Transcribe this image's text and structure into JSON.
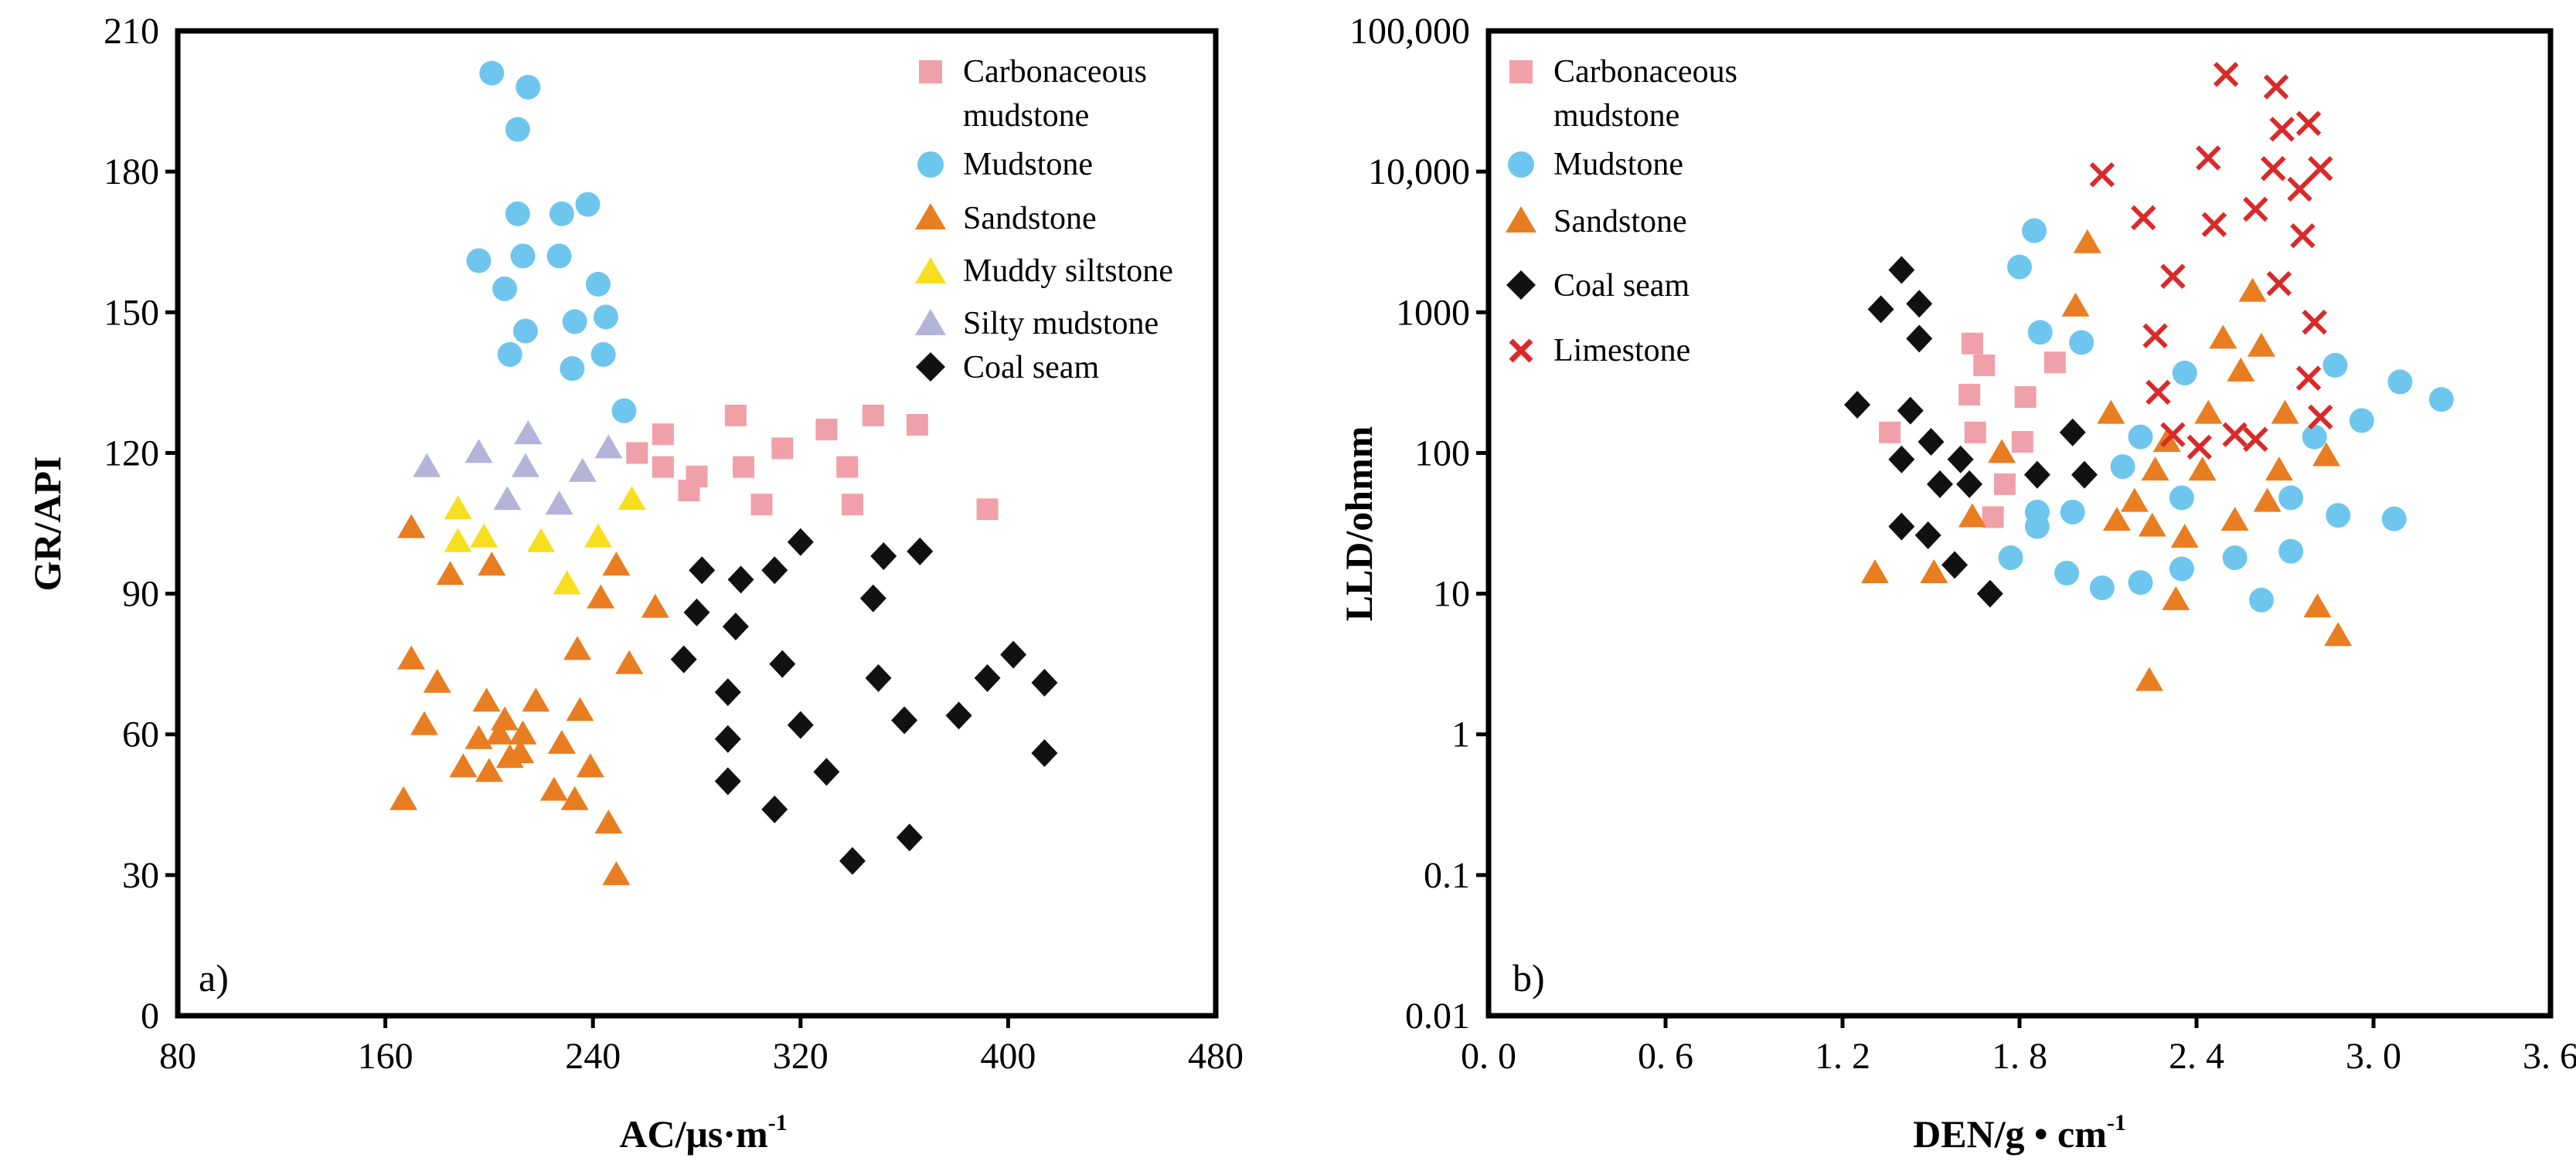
{
  "colors": {
    "carbonaceous_mudstone": "#f0a0a8",
    "mudstone": "#6ec6ee",
    "sandstone": "#e87d22",
    "muddy_siltstone": "#f7de1f",
    "silty_mudstone": "#b3b4d8",
    "coal_seam": "#111111",
    "limestone": "#d92a2a"
  },
  "chart_data": [
    {
      "type": "scatter",
      "panel_label": "a)",
      "xlabel": "AC/μs·m",
      "xlabel_sup": "-1",
      "ylabel": "GR/API",
      "xlim": [
        80,
        480
      ],
      "ylim": [
        0,
        210
      ],
      "x_ticks": [
        "80",
        "160",
        "240",
        "320",
        "400",
        "480"
      ],
      "y_ticks": [
        "0",
        "30",
        "60",
        "90",
        "120",
        "150",
        "180",
        "210"
      ],
      "legend_position": "top-right",
      "legend": [
        "Carbonaceous",
        "mudstone",
        "Mudstone",
        "Sandstone",
        "Muddy siltstone",
        "Silty mudstone",
        "Coal seam"
      ],
      "series": [
        {
          "name": "Carbonaceous mudstone",
          "color_key": "carbonaceous_mudstone",
          "marker": "square",
          "points": [
            [
              257,
              120
            ],
            [
              267,
              124
            ],
            [
              267,
              117
            ],
            [
              277,
              112
            ],
            [
              280,
              115
            ],
            [
              295,
              128
            ],
            [
              298,
              117
            ],
            [
              305,
              109
            ],
            [
              313,
              121
            ],
            [
              330,
              125
            ],
            [
              338,
              117
            ],
            [
              340,
              109
            ],
            [
              348,
              128
            ],
            [
              365,
              126
            ],
            [
              392,
              108
            ]
          ]
        },
        {
          "name": "Mudstone",
          "color_key": "mudstone",
          "marker": "circle",
          "points": [
            [
              201,
              201
            ],
            [
              215,
              198
            ],
            [
              211,
              189
            ],
            [
              211,
              171
            ],
            [
              228,
              171
            ],
            [
              238,
              173
            ],
            [
              196,
              161
            ],
            [
              213,
              162
            ],
            [
              227,
              162
            ],
            [
              206,
              155
            ],
            [
              242,
              156
            ],
            [
              233,
              148
            ],
            [
              245,
              149
            ],
            [
              214,
              146
            ],
            [
              208,
              141
            ],
            [
              244,
              141
            ],
            [
              232,
              138
            ],
            [
              252,
              129
            ]
          ]
        },
        {
          "name": "Sandstone",
          "color_key": "sandstone",
          "marker": "triangle",
          "points": [
            [
              170,
              104
            ],
            [
              185,
              94
            ],
            [
              201,
              96
            ],
            [
              243,
              89
            ],
            [
              249,
              96
            ],
            [
              264,
              87
            ],
            [
              254,
              75
            ],
            [
              170,
              76
            ],
            [
              175,
              62
            ],
            [
              180,
              71
            ],
            [
              234,
              78
            ],
            [
              167,
              46
            ],
            [
              190,
              53
            ],
            [
              196,
              59
            ],
            [
              199,
              67
            ],
            [
              200,
              52
            ],
            [
              204,
              60
            ],
            [
              206,
              63
            ],
            [
              208,
              55
            ],
            [
              212,
              56
            ],
            [
              213,
              60
            ],
            [
              218,
              67
            ],
            [
              225,
              48
            ],
            [
              228,
              58
            ],
            [
              233,
              46
            ],
            [
              235,
              65
            ],
            [
              239,
              53
            ],
            [
              246,
              41
            ],
            [
              249,
              30
            ]
          ]
        },
        {
          "name": "Muddy siltstone",
          "color_key": "muddy_siltstone",
          "marker": "triangle",
          "points": [
            [
              188,
              108
            ],
            [
              188,
              101
            ],
            [
              198,
              102
            ],
            [
              220,
              101
            ],
            [
              230,
              92
            ],
            [
              242,
              102
            ],
            [
              255,
              110
            ]
          ]
        },
        {
          "name": "Silty mudstone",
          "color_key": "silty_mudstone",
          "marker": "triangle",
          "points": [
            [
              176,
              117
            ],
            [
              196,
              120
            ],
            [
              207,
              110
            ],
            [
              214,
              117
            ],
            [
              215,
              124
            ],
            [
              227,
              109
            ],
            [
              236,
              116
            ],
            [
              246,
              121
            ]
          ]
        },
        {
          "name": "Coal seam",
          "color_key": "coal_seam",
          "marker": "diamond",
          "points": [
            [
              282,
              95
            ],
            [
              275,
              76
            ],
            [
              280,
              86
            ],
            [
              292,
              69
            ],
            [
              292,
              59
            ],
            [
              292,
              50
            ],
            [
              295,
              83
            ],
            [
              297,
              93
            ],
            [
              310,
              95
            ],
            [
              310,
              44
            ],
            [
              313,
              75
            ],
            [
              320,
              101
            ],
            [
              320,
              62
            ],
            [
              330,
              52
            ],
            [
              340,
              33
            ],
            [
              348,
              89
            ],
            [
              350,
              72
            ],
            [
              352,
              98
            ],
            [
              360,
              63
            ],
            [
              362,
              38
            ],
            [
              366,
              99
            ],
            [
              381,
              64
            ],
            [
              392,
              72
            ],
            [
              402,
              77
            ],
            [
              414,
              71
            ],
            [
              414,
              56
            ]
          ]
        }
      ]
    },
    {
      "type": "scatter",
      "panel_label": "b)",
      "xlabel": "DEN/g • cm",
      "xlabel_sup": "-1",
      "ylabel": "LLD/ohmm",
      "xlim": [
        0.0,
        3.6
      ],
      "ylim": [
        0.01,
        100000
      ],
      "y_scale": "log",
      "x_ticks": [
        "0. 0",
        "0. 6",
        "1. 2",
        "1. 8",
        "2. 4",
        "3. 0",
        "3. 6"
      ],
      "y_ticks": [
        "0.01",
        "0.1",
        "1",
        "10",
        "100",
        "1000",
        "10,000",
        "100,000"
      ],
      "legend_position": "top-left",
      "legend": [
        "Carbonaceous",
        "mudstone",
        "Mudstone",
        "Sandstone",
        "Coal seam",
        "Limestone"
      ],
      "series": [
        {
          "name": "Carbonaceous mudstone",
          "color_key": "carbonaceous_mudstone",
          "marker": "square",
          "points": [
            [
              1.36,
              140
            ],
            [
              1.64,
              600
            ],
            [
              1.68,
              420
            ],
            [
              1.63,
              260
            ],
            [
              1.65,
              140
            ],
            [
              1.82,
              250
            ],
            [
              1.81,
              120
            ],
            [
              1.92,
              440
            ],
            [
              1.75,
              60
            ],
            [
              1.71,
              35
            ]
          ]
        },
        {
          "name": "Mudstone",
          "color_key": "mudstone",
          "marker": "circle",
          "points": [
            [
              1.85,
              3800
            ],
            [
              1.8,
              2100
            ],
            [
              1.87,
              720
            ],
            [
              2.01,
              610
            ],
            [
              1.77,
              18
            ],
            [
              1.86,
              38
            ],
            [
              1.86,
              30
            ],
            [
              1.96,
              14
            ],
            [
              1.98,
              38
            ],
            [
              2.08,
              11
            ],
            [
              2.15,
              80
            ],
            [
              2.21,
              130
            ],
            [
              2.21,
              12
            ],
            [
              2.35,
              48
            ],
            [
              2.35,
              15
            ],
            [
              2.36,
              370
            ],
            [
              2.53,
              18
            ],
            [
              2.62,
              9
            ],
            [
              2.72,
              48
            ],
            [
              2.72,
              20
            ],
            [
              2.8,
              130
            ],
            [
              2.87,
              420
            ],
            [
              2.88,
              36
            ],
            [
              2.96,
              170
            ],
            [
              3.07,
              34
            ],
            [
              3.09,
              320
            ],
            [
              3.23,
              240
            ]
          ]
        },
        {
          "name": "Sandstone",
          "color_key": "sandstone",
          "marker": "triangle",
          "points": [
            [
              1.31,
              14
            ],
            [
              1.51,
              14
            ],
            [
              1.64,
              35
            ],
            [
              1.74,
              100
            ],
            [
              1.99,
              1100
            ],
            [
              2.03,
              3100
            ],
            [
              2.11,
              190
            ],
            [
              2.13,
              33
            ],
            [
              2.19,
              45
            ],
            [
              2.24,
              2.4
            ],
            [
              2.25,
              30
            ],
            [
              2.26,
              75
            ],
            [
              2.3,
              120
            ],
            [
              2.33,
              9
            ],
            [
              2.36,
              25
            ],
            [
              2.42,
              75
            ],
            [
              2.44,
              190
            ],
            [
              2.49,
              650
            ],
            [
              2.53,
              33
            ],
            [
              2.55,
              380
            ],
            [
              2.59,
              1400
            ],
            [
              2.62,
              570
            ],
            [
              2.64,
              45
            ],
            [
              2.68,
              75
            ],
            [
              2.7,
              190
            ],
            [
              2.81,
              8
            ],
            [
              2.84,
              95
            ],
            [
              2.88,
              5
            ]
          ]
        },
        {
          "name": "Coal seam",
          "color_key": "coal_seam",
          "marker": "diamond",
          "points": [
            [
              1.25,
              220
            ],
            [
              1.33,
              1050
            ],
            [
              1.4,
              2000
            ],
            [
              1.46,
              1150
            ],
            [
              1.46,
              650
            ],
            [
              1.43,
              200
            ],
            [
              1.4,
              90
            ],
            [
              1.5,
              120
            ],
            [
              1.53,
              60
            ],
            [
              1.6,
              90
            ],
            [
              1.63,
              60
            ],
            [
              1.4,
              30
            ],
            [
              1.49,
              26
            ],
            [
              1.58,
              16
            ],
            [
              1.7,
              10
            ],
            [
              1.86,
              70
            ],
            [
              1.98,
              140
            ],
            [
              2.02,
              70
            ]
          ]
        },
        {
          "name": "Limestone",
          "color_key": "limestone",
          "marker": "cross",
          "points": [
            [
              2.5,
              49000
            ],
            [
              2.67,
              40000
            ],
            [
              2.69,
              20000
            ],
            [
              2.78,
              22000
            ],
            [
              2.44,
              12500
            ],
            [
              2.66,
              10500
            ],
            [
              2.82,
              10500
            ],
            [
              2.75,
              7500
            ],
            [
              2.08,
              9500
            ],
            [
              2.22,
              4700
            ],
            [
              2.46,
              4200
            ],
            [
              2.6,
              5400
            ],
            [
              2.76,
              3500
            ],
            [
              2.32,
              1800
            ],
            [
              2.68,
              1600
            ],
            [
              2.8,
              850
            ],
            [
              2.26,
              680
            ],
            [
              2.78,
              340
            ],
            [
              2.27,
              270
            ],
            [
              2.82,
              180
            ],
            [
              2.32,
              135
            ],
            [
              2.53,
              135
            ],
            [
              2.6,
              125
            ],
            [
              2.41,
              110
            ]
          ]
        }
      ]
    }
  ]
}
